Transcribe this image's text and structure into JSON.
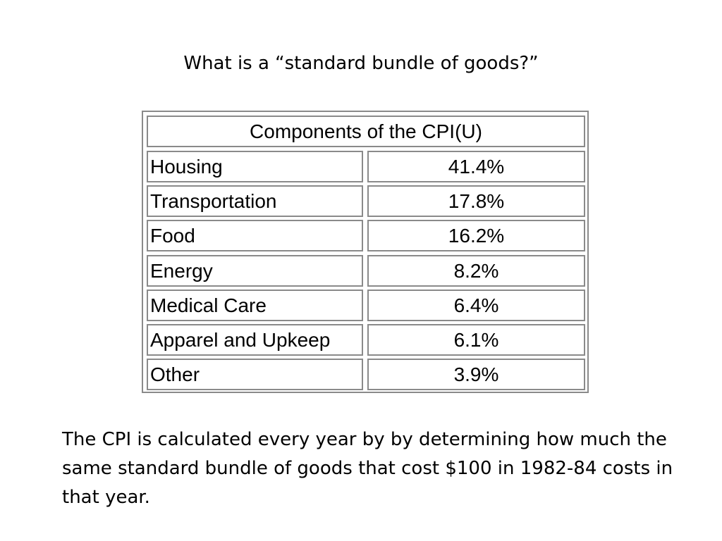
{
  "slide": {
    "title": "What is a “standard bundle of goods?”",
    "body": "The CPI is calculated every year by by determining how much the same standard bundle of goods that cost $100 in 1982-84 costs in that year."
  },
  "table": {
    "header": "Components of the CPI(U)",
    "rows": [
      {
        "label": "Housing",
        "value": "41.4%"
      },
      {
        "label": "Transportation",
        "value": "17.8%"
      },
      {
        "label": "Food",
        "value": "16.2%"
      },
      {
        "label": "Energy",
        "value": "8.2%"
      },
      {
        "label": "Medical Care",
        "value": "6.4%"
      },
      {
        "label": "Apparel and Upkeep",
        "value": "6.1%"
      },
      {
        "label": "Other",
        "value": "3.9%"
      }
    ]
  }
}
